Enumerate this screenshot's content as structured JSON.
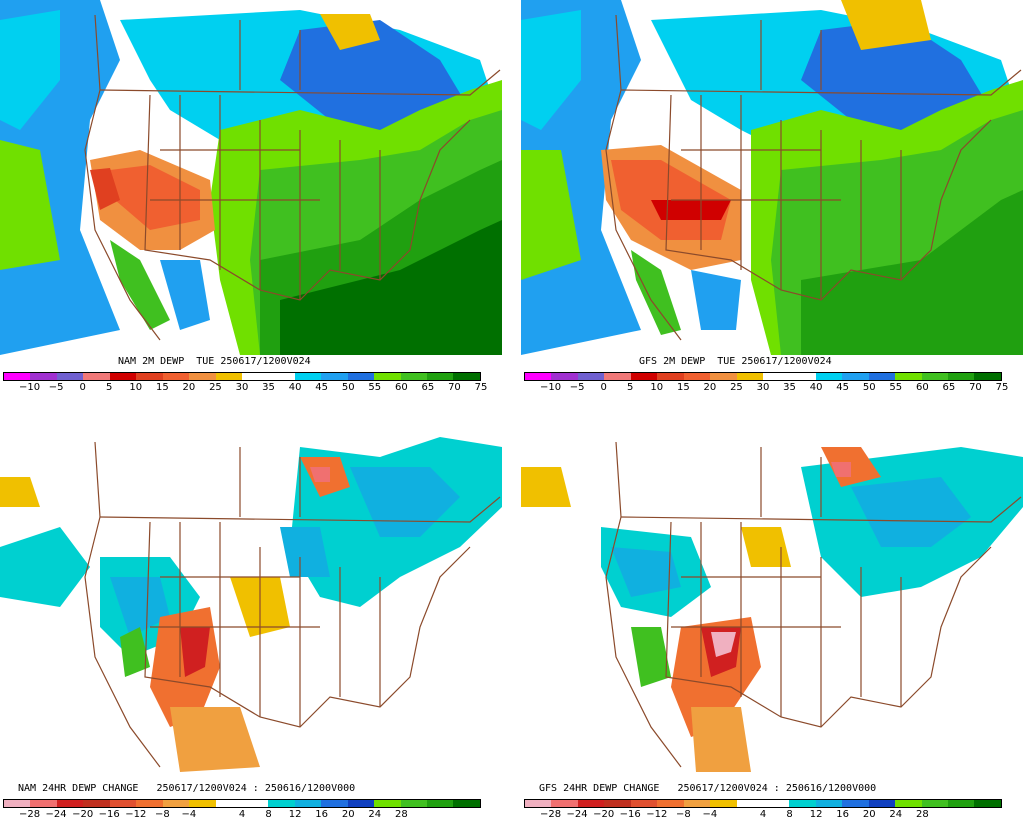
{
  "panels": [
    {
      "id": "nam-dewp",
      "caption": "NAM 2M DEWP  TUE 250617/1200V024",
      "legend": "dewpoint"
    },
    {
      "id": "gfs-dewp",
      "caption": "GFS 2M DEWP  TUE 250617/1200V024",
      "legend": "dewpoint"
    },
    {
      "id": "nam-change",
      "caption": "NAM 24HR DEWP CHANGE   250617/1200V024 : 250616/1200V000",
      "legend": "change"
    },
    {
      "id": "gfs-change",
      "caption": "GFS 24HR DEWP CHANGE   250617/1200V024 : 250616/1200V000",
      "legend": "change"
    }
  ],
  "legends": {
    "dewpoint": {
      "colors": [
        "#ff00ff",
        "#a030d0",
        "#7060d0",
        "#f07878",
        "#d00000",
        "#e04020",
        "#f06030",
        "#f09040",
        "#f0c000",
        "#ffffff",
        "#ffffff",
        "#00d0f0",
        "#20a0f0",
        "#2070e0",
        "#70e000",
        "#40c020",
        "#20a010",
        "#007000"
      ],
      "labels": [
        "−10",
        "−5",
        "0",
        "5",
        "10",
        "15",
        "20",
        "25",
        "30",
        "35",
        "40",
        "45",
        "50",
        "55",
        "60",
        "65",
        "70",
        "75"
      ]
    },
    "change": {
      "colors": [
        "#f0b0c0",
        "#f07070",
        "#d02020",
        "#c03020",
        "#e05030",
        "#f07030",
        "#f0a040",
        "#f0c000",
        "#ffffff",
        "#ffffff",
        "#00d0d0",
        "#10b0e0",
        "#2070e0",
        "#1040c0",
        "#70e000",
        "#40c020",
        "#20a010",
        "#007000"
      ],
      "labels": [
        "−28",
        "−24",
        "−20",
        "−16",
        "−12",
        "−8",
        "−4",
        "4",
        "8",
        "12",
        "16",
        "20",
        "24",
        "28"
      ]
    }
  }
}
